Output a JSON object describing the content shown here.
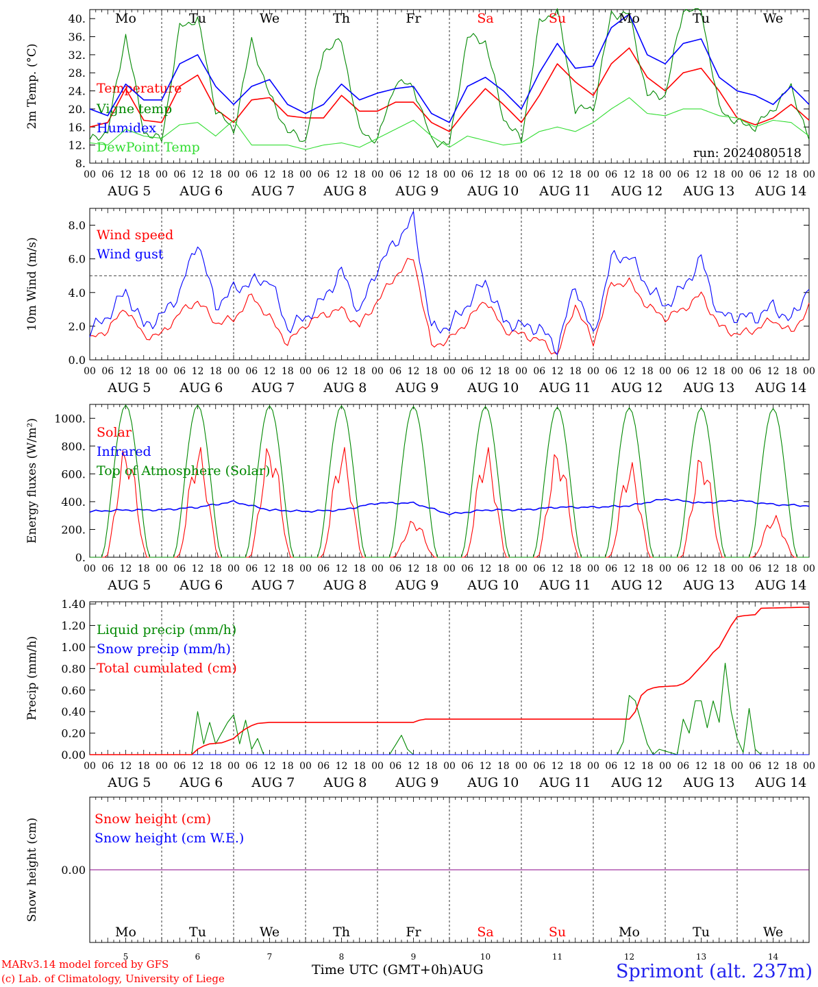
{
  "run_label": "run: 2024080518",
  "days": [
    {
      "weekday": "Mo",
      "date": "5",
      "weekday_color": "#000000"
    },
    {
      "weekday": "Tu",
      "date": "6",
      "weekday_color": "#000000"
    },
    {
      "weekday": "We",
      "date": "7",
      "weekday_color": "#000000"
    },
    {
      "weekday": "Th",
      "date": "8",
      "weekday_color": "#000000"
    },
    {
      "weekday": "Fr",
      "date": "9",
      "weekday_color": "#000000"
    },
    {
      "weekday": "Sa",
      "date": "10",
      "weekday_color": "#ff0000"
    },
    {
      "weekday": "Su",
      "date": "11",
      "weekday_color": "#ff0000"
    },
    {
      "weekday": "Mo",
      "date": "12",
      "weekday_color": "#000000"
    },
    {
      "weekday": "Tu",
      "date": "13",
      "weekday_color": "#000000"
    },
    {
      "weekday": "We",
      "date": "14",
      "weekday_color": "#000000"
    }
  ],
  "month_label": "AUG",
  "hour_ticks": [
    "00",
    "06",
    "12",
    "18"
  ],
  "final_hour_tick": "00",
  "footer": {
    "credit_line1": "MARv3.14 model forced by GFS",
    "credit_line2": "(c) Lab. of Climatology, University of Liege",
    "x_title": "Time UTC (GMT+0h)",
    "x_month": "AUG",
    "station": "Sprimont (alt. 237m)"
  },
  "colors": {
    "red": "#ff0000",
    "green": "#008800",
    "blue": "#0000ff",
    "light_green": "#33dd33",
    "purple": "#880088"
  },
  "chart_data": [
    {
      "type": "line",
      "ylabel": "2m Temp. (°C)",
      "ylim": [
        8,
        42
      ],
      "yticks": [
        8,
        12,
        16,
        20,
        24,
        28,
        32,
        36,
        40
      ],
      "ytick_labels": [
        "8.",
        "12.",
        "16.",
        "20.",
        "24.",
        "28.",
        "32.",
        "36.",
        "40."
      ],
      "x_unit": "hours since AUG 5 00 UTC",
      "series": [
        {
          "name": "Temperature",
          "color": "#ff0000",
          "x": [
            0,
            6,
            12,
            18,
            24,
            30,
            36,
            42,
            48,
            54,
            60,
            66,
            72,
            78,
            84,
            90,
            96,
            102,
            108,
            114,
            120,
            126,
            132,
            138,
            144,
            150,
            156,
            162,
            168,
            174,
            180,
            186,
            192,
            198,
            204,
            210,
            216,
            222,
            228,
            234,
            240
          ],
          "values": [
            16,
            17,
            24.5,
            17.5,
            17,
            25,
            27.5,
            20,
            17,
            22,
            22.5,
            18.5,
            18,
            18,
            23,
            19.5,
            19.5,
            21.5,
            21.5,
            17,
            15,
            20,
            24.5,
            21,
            17,
            23,
            30,
            26,
            23,
            30,
            33.5,
            27,
            24,
            28,
            29,
            24,
            18,
            16.5,
            18,
            21,
            17.5
          ]
        },
        {
          "name": "Vigne temp",
          "color": "#008800",
          "x": [
            0,
            6,
            12,
            18,
            24,
            30,
            36,
            42,
            48,
            54,
            60,
            66,
            72,
            78,
            84,
            90,
            96,
            102,
            108,
            114,
            120,
            126,
            132,
            138,
            144,
            150,
            156,
            162,
            168,
            174,
            180,
            186,
            192,
            198,
            204,
            210,
            216,
            222,
            228,
            234,
            240
          ],
          "values": [
            13,
            15,
            36.5,
            15,
            13,
            38,
            40,
            20,
            15,
            35,
            23,
            15,
            13,
            33,
            35,
            15,
            13,
            26,
            25,
            13,
            12,
            36,
            35,
            18,
            13,
            39,
            42,
            20,
            20,
            41,
            41,
            23,
            23,
            42,
            42,
            20,
            17,
            16,
            20,
            25,
            13
          ]
        },
        {
          "name": "Humidex",
          "color": "#0000ff",
          "x": [
            0,
            6,
            12,
            18,
            24,
            30,
            36,
            42,
            48,
            54,
            60,
            66,
            72,
            78,
            84,
            90,
            96,
            102,
            108,
            114,
            120,
            126,
            132,
            138,
            144,
            150,
            156,
            162,
            168,
            174,
            180,
            186,
            192,
            198,
            204,
            210,
            216,
            222,
            228,
            234,
            240
          ],
          "values": [
            20,
            18.5,
            25.5,
            22,
            22,
            30,
            32,
            25,
            21,
            25,
            26.5,
            21,
            19,
            21,
            25.5,
            22,
            23.5,
            24.5,
            25,
            19,
            17,
            25,
            27,
            24,
            20,
            28,
            34.5,
            29,
            29.5,
            38,
            41,
            32,
            30,
            34.5,
            35.5,
            27,
            24,
            23,
            21,
            25,
            21
          ]
        },
        {
          "name": "DewPoint Temp",
          "color": "#33dd33",
          "x": [
            0,
            6,
            12,
            18,
            24,
            30,
            36,
            42,
            48,
            54,
            60,
            66,
            72,
            78,
            84,
            90,
            96,
            102,
            108,
            114,
            120,
            126,
            132,
            138,
            144,
            150,
            156,
            162,
            168,
            174,
            180,
            186,
            192,
            198,
            204,
            210,
            216,
            222,
            228,
            234,
            240
          ],
          "values": [
            12.5,
            12,
            15.5,
            14,
            13.5,
            16.5,
            17,
            14,
            17.5,
            12,
            12,
            12,
            11,
            12,
            12.5,
            11.5,
            13.5,
            15.5,
            17.5,
            14,
            11.5,
            14,
            13,
            12,
            12.5,
            15,
            16,
            15,
            17,
            20,
            22.5,
            19,
            18.5,
            20,
            20,
            18.5,
            18,
            16,
            17.5,
            17,
            14
          ]
        }
      ]
    },
    {
      "type": "line",
      "ylabel": "10m Wind (m/s)",
      "ylim": [
        0,
        9
      ],
      "yticks": [
        0,
        2,
        4,
        6,
        8
      ],
      "ytick_labels": [
        "0.0",
        "2.0",
        "4.0",
        "6.0",
        "8.0"
      ],
      "reference_line": 5,
      "x_unit": "hours since AUG 5 00 UTC",
      "series": [
        {
          "name": "Wind speed",
          "color": "#ff0000",
          "x": [
            0,
            6,
            12,
            18,
            24,
            30,
            36,
            42,
            48,
            54,
            60,
            66,
            72,
            78,
            84,
            90,
            96,
            102,
            108,
            114,
            120,
            126,
            132,
            138,
            144,
            150,
            156,
            162,
            168,
            174,
            180,
            186,
            192,
            198,
            204,
            210,
            216,
            222,
            228,
            234,
            240
          ],
          "values": [
            1.2,
            1.8,
            3.1,
            1.4,
            1.5,
            2.8,
            3.5,
            2.2,
            2.4,
            3.8,
            2.5,
            1.0,
            2.1,
            2.7,
            3.0,
            2.0,
            3.5,
            5.0,
            6.1,
            0.8,
            1.2,
            2.3,
            3.6,
            1.8,
            1.5,
            1.2,
            0.3,
            3.3,
            1.0,
            4.5,
            4.6,
            3.2,
            2.5,
            3.0,
            3.9,
            2.0,
            1.5,
            1.8,
            2.4,
            1.6,
            3.1
          ]
        },
        {
          "name": "Wind gust",
          "color": "#0000ff",
          "x": [
            0,
            6,
            12,
            18,
            24,
            30,
            36,
            42,
            48,
            54,
            60,
            66,
            72,
            78,
            84,
            90,
            96,
            102,
            108,
            114,
            120,
            126,
            132,
            138,
            144,
            150,
            156,
            162,
            168,
            174,
            180,
            186,
            192,
            198,
            204,
            210,
            216,
            222,
            228,
            234,
            240
          ],
          "values": [
            1.7,
            2.6,
            4.1,
            2.0,
            2.6,
            4.0,
            7.1,
            3.2,
            4.2,
            4.6,
            4.8,
            1.9,
            2.5,
            3.6,
            5.3,
            2.8,
            5.5,
            7.0,
            8.4,
            1.8,
            2.0,
            3.3,
            4.7,
            2.3,
            2.0,
            1.9,
            0.7,
            4.5,
            1.3,
            6.0,
            6.2,
            4.4,
            3.2,
            4.3,
            6.0,
            2.6,
            2.6,
            2.5,
            3.2,
            2.3,
            4.4
          ]
        }
      ]
    },
    {
      "type": "line",
      "ylabel": "Energy fluxes (W/m²)",
      "ylim": [
        0,
        1100
      ],
      "yticks": [
        0,
        200,
        400,
        600,
        800,
        1000
      ],
      "ytick_labels": [
        "0.",
        "200.",
        "400.",
        "600.",
        "800.",
        "1000."
      ],
      "x_unit": "hours since AUG 5 00 UTC",
      "series": [
        {
          "name": "Solar",
          "color": "#ff0000",
          "daily_peaks": [
            820,
            810,
            840,
            810,
            280,
            810,
            800,
            700,
            760,
            310
          ]
        },
        {
          "name": "Infrared",
          "color": "#0000ff",
          "x": [
            0,
            12,
            24,
            36,
            48,
            60,
            72,
            84,
            96,
            108,
            120,
            132,
            144,
            156,
            168,
            180,
            192,
            204,
            216,
            228,
            240
          ],
          "values": [
            330,
            340,
            340,
            360,
            400,
            340,
            330,
            340,
            390,
            390,
            310,
            340,
            340,
            360,
            360,
            370,
            420,
            390,
            410,
            380,
            370
          ]
        },
        {
          "name": "Top of Atmosphere (Solar)",
          "color": "#008800",
          "daily_peaks": [
            1095,
            1095,
            1090,
            1090,
            1085,
            1085,
            1080,
            1075,
            1075,
            1070
          ]
        }
      ]
    },
    {
      "type": "line",
      "ylabel": "Precip (mm/h)",
      "ylim": [
        0,
        1.42
      ],
      "yticks": [
        0,
        0.2,
        0.4,
        0.6,
        0.8,
        1.0,
        1.2,
        1.4
      ],
      "ytick_labels": [
        "0.00",
        "0.20",
        "0.40",
        "0.60",
        "0.80",
        "1.00",
        "1.20",
        "1.40"
      ],
      "x_unit": "hours since AUG 5 00 UTC",
      "series": [
        {
          "name": "Liquid precip (mm/h)",
          "color": "#008800",
          "x": [
            0,
            34,
            36,
            38,
            40,
            42,
            44,
            46,
            48,
            50,
            52,
            54,
            56,
            58,
            60,
            100,
            104,
            106,
            108,
            176,
            178,
            180,
            182,
            184,
            186,
            188,
            190,
            196,
            198,
            200,
            202,
            204,
            206,
            208,
            210,
            212,
            214,
            216,
            218,
            220,
            222,
            224,
            240
          ],
          "values": [
            0,
            0,
            0.4,
            0.1,
            0.3,
            0.1,
            0.2,
            0.3,
            0.37,
            0.1,
            0.32,
            0.05,
            0.15,
            0,
            0,
            0,
            0.18,
            0.05,
            0,
            0,
            0.12,
            0.55,
            0.5,
            0.3,
            0.1,
            0,
            0.05,
            0,
            0.33,
            0.2,
            0.5,
            0.5,
            0.25,
            0.5,
            0.3,
            0.85,
            0.4,
            0.15,
            0.02,
            0.43,
            0.05,
            0,
            0
          ]
        },
        {
          "name": "Snow precip (mm/h)",
          "color": "#0000ff",
          "x": [
            0,
            240
          ],
          "values": [
            0,
            0
          ]
        },
        {
          "name": "Total cumulated (cm)",
          "color": "#ff0000",
          "x": [
            0,
            34,
            36,
            38,
            40,
            44,
            48,
            50,
            52,
            54,
            56,
            60,
            108,
            110,
            112,
            180,
            182,
            184,
            186,
            188,
            190,
            196,
            198,
            200,
            204,
            206,
            208,
            210,
            212,
            214,
            216,
            218,
            222,
            224,
            240
          ],
          "values": [
            0,
            0,
            0.05,
            0.08,
            0.1,
            0.11,
            0.15,
            0.2,
            0.24,
            0.27,
            0.29,
            0.3,
            0.3,
            0.32,
            0.33,
            0.33,
            0.4,
            0.55,
            0.6,
            0.62,
            0.63,
            0.64,
            0.66,
            0.7,
            0.82,
            0.88,
            0.95,
            1.0,
            1.1,
            1.2,
            1.28,
            1.29,
            1.3,
            1.36,
            1.37
          ]
        }
      ]
    },
    {
      "type": "line",
      "ylabel": "Snow height (cm)",
      "ylim": [
        -1,
        1
      ],
      "yticks": [
        0
      ],
      "ytick_labels": [
        "0.00"
      ],
      "x_unit": "hours since AUG 5 00 UTC",
      "series": [
        {
          "name": "Snow height (cm)",
          "color": "#ff0000",
          "x": [
            0,
            240
          ],
          "values": [
            0,
            0
          ]
        },
        {
          "name": "Snow height (cm W.E.)",
          "color": "#0000ff",
          "x": [
            0,
            240
          ],
          "values": [
            0,
            0
          ]
        }
      ]
    }
  ]
}
